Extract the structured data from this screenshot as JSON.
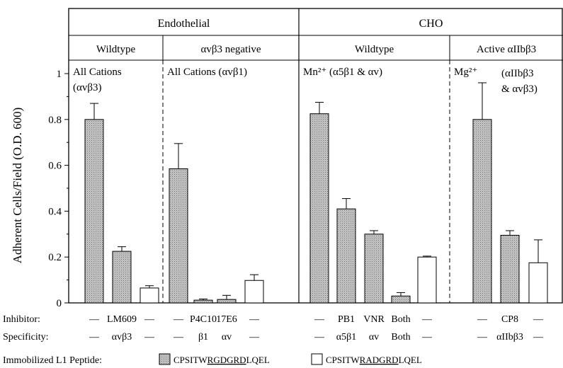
{
  "chart_data": {
    "type": "bar",
    "ylabel": "Adherent Cells/Field (O.D. 600)",
    "ylim": [
      0,
      1.0
    ],
    "yticks": [
      {
        "v": 0,
        "label": "0"
      },
      {
        "v": 0.2,
        "label": "0.2"
      },
      {
        "v": 0.4,
        "label": "0.4"
      },
      {
        "v": 0.6,
        "label": "0.6"
      },
      {
        "v": 0.8,
        "label": "0.8"
      },
      {
        "v": 1.0,
        "label": "1"
      }
    ],
    "header_top": [
      {
        "label": "Endothelial",
        "span": [
          0,
          1
        ]
      },
      {
        "label": "CHO",
        "span": [
          2,
          3
        ]
      }
    ],
    "panels": [
      {
        "label": "Wildtype",
        "annotation": [
          "All Cations",
          "(αvβ3)"
        ],
        "bars": [
          {
            "value": 0.8,
            "error": 0.07,
            "pattern": "RGD",
            "inhibitor": "—",
            "specificity": "—"
          },
          {
            "value": 0.225,
            "error": 0.02,
            "pattern": "RGD",
            "inhibitor": "LM609",
            "specificity": "αvβ3"
          },
          {
            "value": 0.065,
            "error": 0.01,
            "pattern": "RAD",
            "inhibitor": "—",
            "specificity": "—"
          }
        ]
      },
      {
        "label": "αvβ3 negative",
        "annotation": [
          "All Cations (αvβ1)"
        ],
        "bars": [
          {
            "value": 0.585,
            "error": 0.11,
            "pattern": "RGD",
            "inhibitor": "—",
            "specificity": "—"
          },
          {
            "value": 0.012,
            "error": 0.005,
            "pattern": "RGD",
            "inhibitor": "P4C10",
            "specificity": "β1"
          },
          {
            "value": 0.015,
            "error": 0.018,
            "pattern": "RGD",
            "inhibitor": "17E6",
            "specificity": "αv"
          },
          {
            "value": 0.098,
            "error": 0.025,
            "pattern": "RAD",
            "inhibitor": "—",
            "specificity": "—"
          }
        ]
      },
      {
        "label": "Wildtype",
        "annotation": [
          "Mn²⁺ (α5β1 & αv)"
        ],
        "bars": [
          {
            "value": 0.825,
            "error": 0.05,
            "pattern": "RGD",
            "inhibitor": "—",
            "specificity": "—"
          },
          {
            "value": 0.41,
            "error": 0.045,
            "pattern": "RGD",
            "inhibitor": "PB1",
            "specificity": "α5β1"
          },
          {
            "value": 0.3,
            "error": 0.015,
            "pattern": "RGD",
            "inhibitor": "VNR",
            "specificity": "αv"
          },
          {
            "value": 0.03,
            "error": 0.015,
            "pattern": "RGD",
            "inhibitor": "Both",
            "specificity": "Both"
          },
          {
            "value": 0.2,
            "error": 0.004,
            "pattern": "RAD",
            "inhibitor": "—",
            "specificity": "—"
          }
        ]
      },
      {
        "label": "Active αIIbβ3",
        "annotation": [
          "Mg²⁺",
          "(αIIbβ3",
          "& αvβ3)"
        ],
        "bars": [
          {
            "value": 0.8,
            "error": 0.16,
            "pattern": "RGD",
            "inhibitor": "—",
            "specificity": "—"
          },
          {
            "value": 0.295,
            "error": 0.02,
            "pattern": "RGD",
            "inhibitor": "CP8",
            "specificity": "αIIbβ3"
          },
          {
            "value": 0.175,
            "error": 0.1,
            "pattern": "RAD",
            "inhibitor": "—",
            "specificity": "—"
          }
        ]
      }
    ],
    "row_labels": {
      "inhibitor": "Inhibitor:",
      "specificity": "Specificity:"
    },
    "legend": {
      "title": "Immobilized L1 Peptide:",
      "items": [
        {
          "key": "RGD",
          "prefix": "CPSITW",
          "underlined": "RGDGRD",
          "suffix": "LQEL",
          "fill": "stipple"
        },
        {
          "key": "RAD",
          "prefix": "CPSITW",
          "underlined": "RADGRD",
          "suffix": "LQEL",
          "fill": "white"
        }
      ]
    },
    "colors": {
      "stipple_bg": "#c9c9c9",
      "stipple_dot": "#6a6a6a",
      "line": "#000000"
    }
  }
}
